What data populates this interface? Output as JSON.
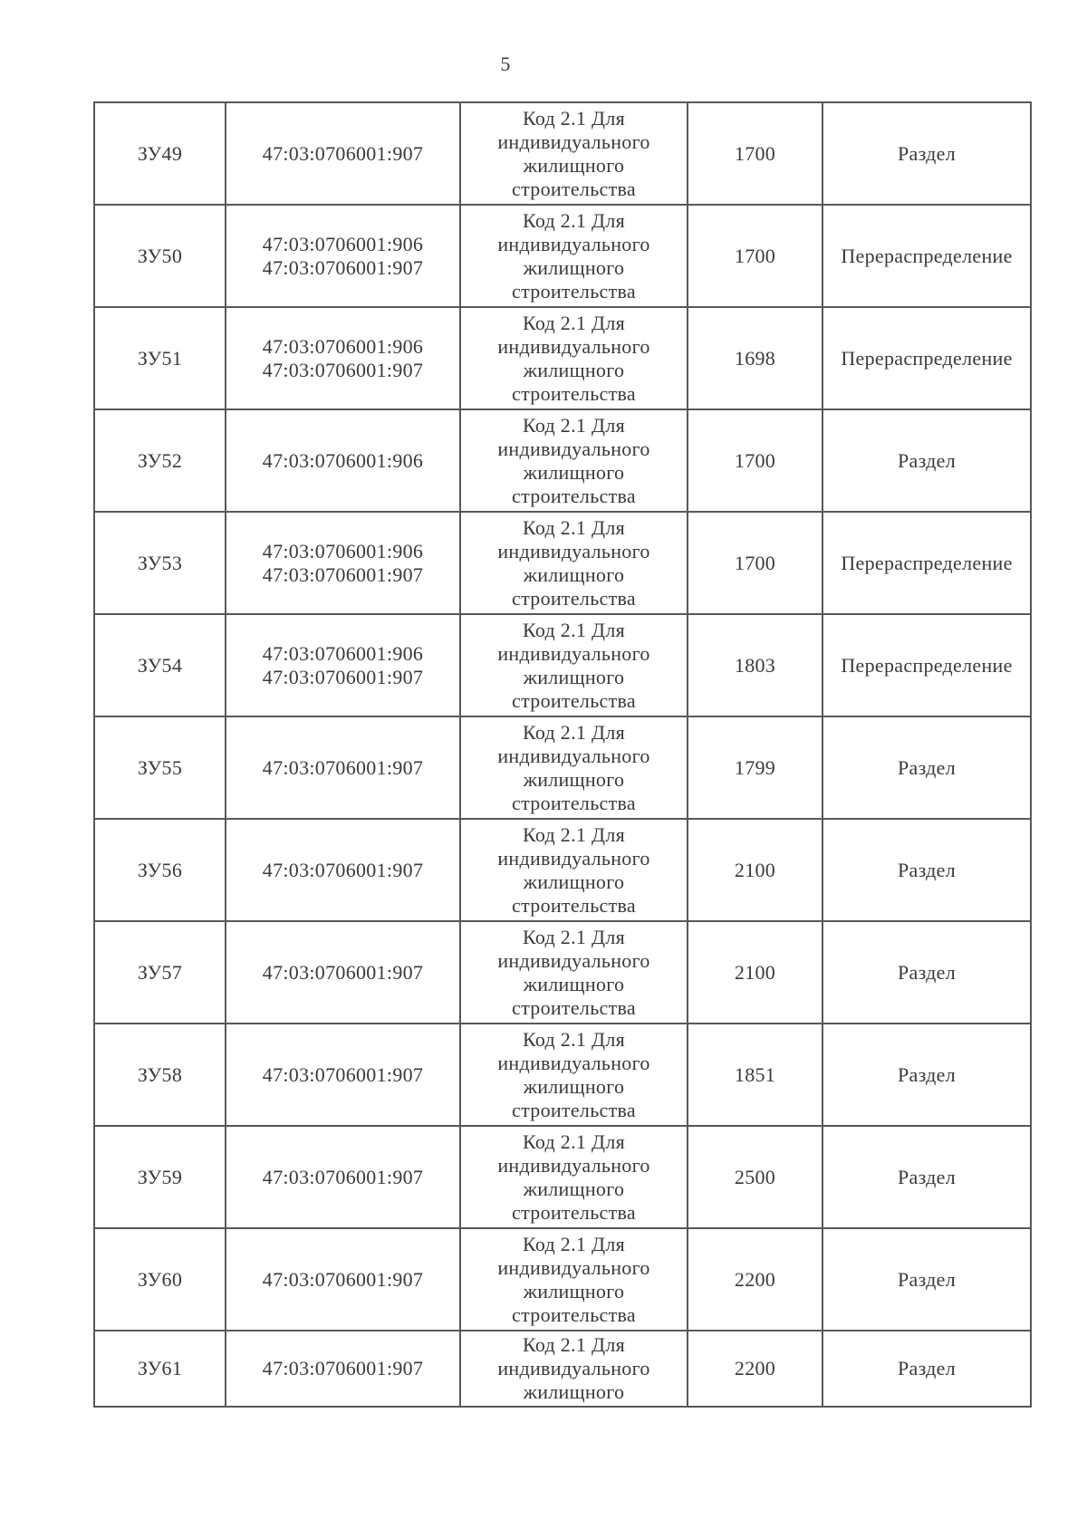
{
  "page": {
    "number": "5"
  },
  "table": {
    "columns": [
      "plot-id",
      "cadastral-numbers",
      "permitted-use",
      "area",
      "formation-action"
    ],
    "rows": [
      {
        "id": "ЗУ49",
        "cadastral": [
          "47:03:0706001:907"
        ],
        "usage_lines": [
          "Код 2.1 Для",
          "индивидуального",
          "жилищного",
          "строительства"
        ],
        "area": "1700",
        "action": "Раздел",
        "short": false
      },
      {
        "id": "ЗУ50",
        "cadastral": [
          "47:03:0706001:906",
          "47:03:0706001:907"
        ],
        "usage_lines": [
          "Код 2.1 Для",
          "индивидуального",
          "жилищного",
          "строительства"
        ],
        "area": "1700",
        "action": "Перераспределение",
        "short": false
      },
      {
        "id": "ЗУ51",
        "cadastral": [
          "47:03:0706001:906",
          "47:03:0706001:907"
        ],
        "usage_lines": [
          "Код 2.1 Для",
          "индивидуального",
          "жилищного",
          "строительства"
        ],
        "area": "1698",
        "action": "Перераспределение",
        "short": false
      },
      {
        "id": "ЗУ52",
        "cadastral": [
          "47:03:0706001:906"
        ],
        "usage_lines": [
          "Код 2.1 Для",
          "индивидуального",
          "жилищного",
          "строительства"
        ],
        "area": "1700",
        "action": "Раздел",
        "short": false
      },
      {
        "id": "ЗУ53",
        "cadastral": [
          "47:03:0706001:906",
          "47:03:0706001:907"
        ],
        "usage_lines": [
          "Код 2.1 Для",
          "индивидуального",
          "жилищного",
          "строительства"
        ],
        "area": "1700",
        "action": "Перераспределение",
        "short": false
      },
      {
        "id": "ЗУ54",
        "cadastral": [
          "47:03:0706001:906",
          "47:03:0706001:907"
        ],
        "usage_lines": [
          "Код 2.1 Для",
          "индивидуального",
          "жилищного",
          "строительства"
        ],
        "area": "1803",
        "action": "Перераспределение",
        "short": false
      },
      {
        "id": "ЗУ55",
        "cadastral": [
          "47:03:0706001:907"
        ],
        "usage_lines": [
          "Код 2.1 Для",
          "индивидуального",
          "жилищного",
          "строительства"
        ],
        "area": "1799",
        "action": "Раздел",
        "short": false
      },
      {
        "id": "ЗУ56",
        "cadastral": [
          "47:03:0706001:907"
        ],
        "usage_lines": [
          "Код 2.1 Для",
          "индивидуального",
          "жилищного",
          "строительства"
        ],
        "area": "2100",
        "action": "Раздел",
        "short": false
      },
      {
        "id": "ЗУ57",
        "cadastral": [
          "47:03:0706001:907"
        ],
        "usage_lines": [
          "Код 2.1 Для",
          "индивидуального",
          "жилищного",
          "строительства"
        ],
        "area": "2100",
        "action": "Раздел",
        "short": false
      },
      {
        "id": "ЗУ58",
        "cadastral": [
          "47:03:0706001:907"
        ],
        "usage_lines": [
          "Код 2.1 Для",
          "индивидуального",
          "жилищного",
          "строительства"
        ],
        "area": "1851",
        "action": "Раздел",
        "short": false
      },
      {
        "id": "ЗУ59",
        "cadastral": [
          "47:03:0706001:907"
        ],
        "usage_lines": [
          "Код 2.1 Для",
          "индивидуального",
          "жилищного",
          "строительства"
        ],
        "area": "2500",
        "action": "Раздел",
        "short": false
      },
      {
        "id": "ЗУ60",
        "cadastral": [
          "47:03:0706001:907"
        ],
        "usage_lines": [
          "Код 2.1 Для",
          "индивидуального",
          "жилищного",
          "строительства"
        ],
        "area": "2200",
        "action": "Раздел",
        "short": false
      },
      {
        "id": "ЗУ61",
        "cadastral": [
          "47:03:0706001:907"
        ],
        "usage_lines": [
          "Код 2.1 Для",
          "индивидуального",
          "жилищного"
        ],
        "area": "2200",
        "action": "Раздел",
        "short": true
      }
    ]
  },
  "colors": {
    "border": "#585858",
    "text": "#3a3a3a",
    "background": "#ffffff"
  }
}
